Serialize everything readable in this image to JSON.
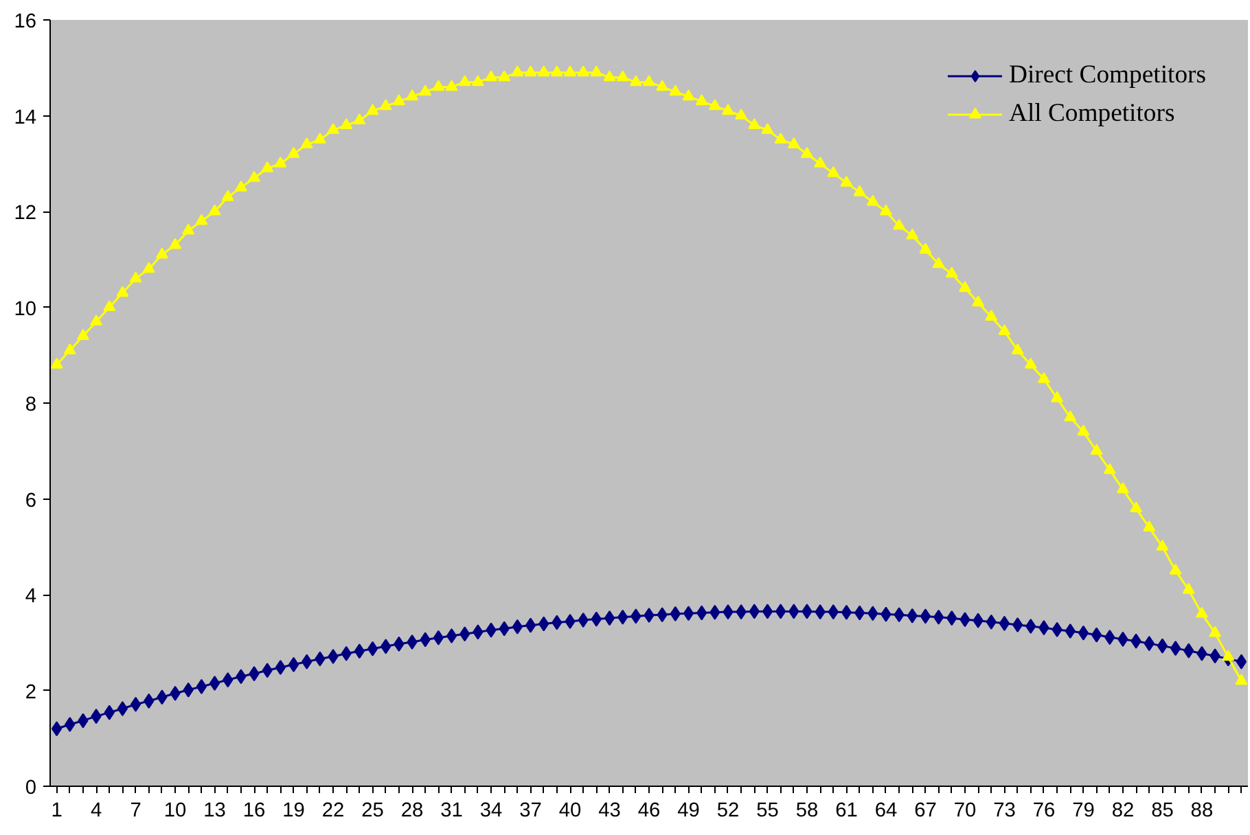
{
  "chart_data": {
    "type": "line",
    "categories": [
      "1",
      null,
      null,
      "4",
      null,
      null,
      "7",
      null,
      null,
      "10",
      null,
      null,
      "13",
      null,
      null,
      "16",
      null,
      null,
      "19",
      null,
      null,
      "22",
      null,
      null,
      "25",
      null,
      null,
      "28",
      null,
      null,
      "31",
      null,
      null,
      "34",
      null,
      null,
      "37",
      null,
      null,
      "40",
      null,
      null,
      "43",
      null,
      null,
      "46",
      null,
      null,
      "49",
      null,
      null,
      "52",
      null,
      null,
      "55",
      null,
      null,
      "58",
      null,
      null,
      "61",
      null,
      null,
      "64",
      null,
      null,
      "67",
      null,
      null,
      "70",
      null,
      null,
      "73",
      null,
      null,
      "76",
      null,
      null,
      "79",
      null,
      null,
      "82",
      null,
      null,
      "85",
      null,
      null,
      "88",
      null,
      null,
      null
    ],
    "series": [
      {
        "name": "Direct Competitors",
        "color": "#000080",
        "marker": "diamond",
        "values": [
          1.2,
          1.29,
          1.37,
          1.46,
          1.54,
          1.62,
          1.71,
          1.78,
          1.86,
          1.94,
          2.01,
          2.08,
          2.15,
          2.22,
          2.29,
          2.35,
          2.42,
          2.48,
          2.54,
          2.6,
          2.66,
          2.71,
          2.77,
          2.82,
          2.87,
          2.92,
          2.97,
          3.01,
          3.06,
          3.1,
          3.14,
          3.18,
          3.22,
          3.26,
          3.29,
          3.33,
          3.36,
          3.39,
          3.42,
          3.44,
          3.47,
          3.49,
          3.51,
          3.53,
          3.55,
          3.57,
          3.58,
          3.6,
          3.61,
          3.62,
          3.63,
          3.64,
          3.64,
          3.65,
          3.65,
          3.65,
          3.65,
          3.65,
          3.64,
          3.64,
          3.63,
          3.62,
          3.61,
          3.59,
          3.58,
          3.56,
          3.55,
          3.53,
          3.51,
          3.48,
          3.46,
          3.43,
          3.4,
          3.37,
          3.34,
          3.31,
          3.27,
          3.24,
          3.2,
          3.16,
          3.11,
          3.07,
          3.03,
          2.98,
          2.93,
          2.88,
          2.83,
          2.77,
          2.72,
          2.66,
          2.6
        ]
      },
      {
        "name": "All Competitors",
        "color": "#ffff00",
        "marker": "triangle",
        "values": [
          8.8,
          9.1,
          9.4,
          9.7,
          10.0,
          10.3,
          10.6,
          10.8,
          11.1,
          11.3,
          11.6,
          11.8,
          12.0,
          12.3,
          12.5,
          12.7,
          12.9,
          13.0,
          13.2,
          13.4,
          13.5,
          13.7,
          13.8,
          13.9,
          14.1,
          14.2,
          14.3,
          14.4,
          14.5,
          14.6,
          14.6,
          14.7,
          14.7,
          14.8,
          14.8,
          14.9,
          14.9,
          14.9,
          14.9,
          14.9,
          14.9,
          14.9,
          14.8,
          14.8,
          14.7,
          14.7,
          14.6,
          14.5,
          14.4,
          14.3,
          14.2,
          14.1,
          14.0,
          13.8,
          13.7,
          13.5,
          13.4,
          13.2,
          13.0,
          12.8,
          12.6,
          12.4,
          12.2,
          12.0,
          11.7,
          11.5,
          11.2,
          10.9,
          10.7,
          10.4,
          10.1,
          9.8,
          9.5,
          9.1,
          8.8,
          8.5,
          8.1,
          7.7,
          7.4,
          7.0,
          6.6,
          6.2,
          5.8,
          5.4,
          5.0,
          4.5,
          4.1,
          3.6,
          3.2,
          2.7,
          2.2
        ]
      }
    ],
    "ylim": [
      0,
      16
    ],
    "yticks": [
      0,
      2,
      4,
      6,
      8,
      10,
      12,
      14,
      16
    ],
    "grid": false,
    "legend": "top right",
    "line_style": "solid"
  }
}
